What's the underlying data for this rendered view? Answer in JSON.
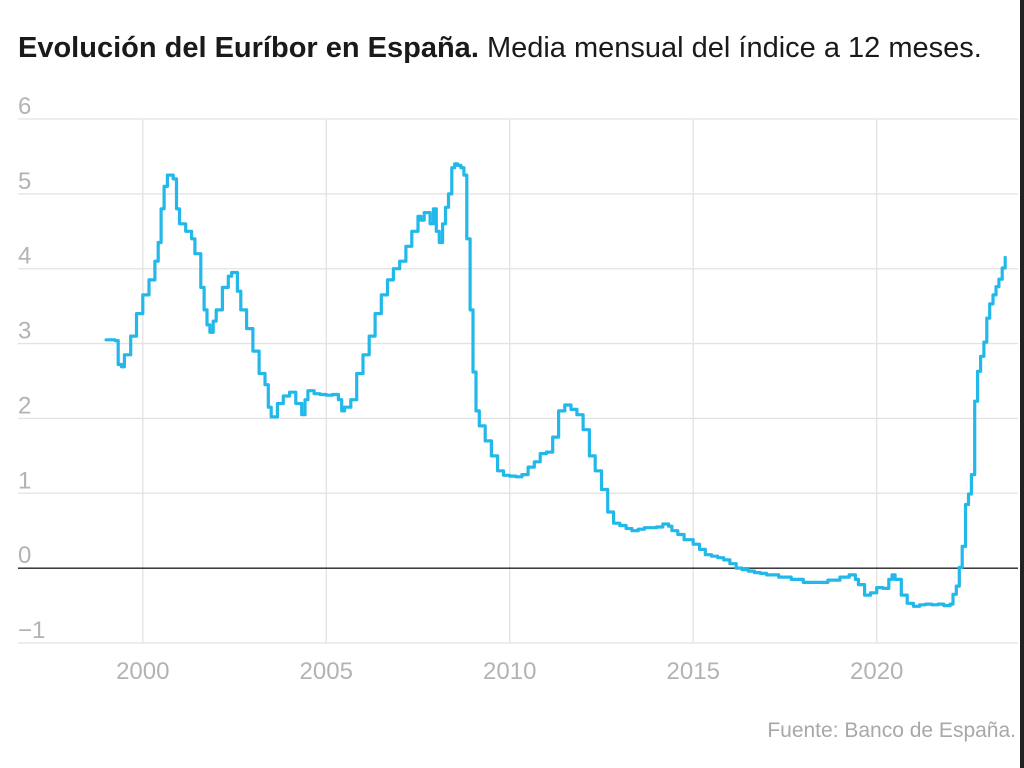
{
  "title": {
    "bold": "Evolución del Euríbor en España.",
    "regular": "Media mensual del índice a 12 meses."
  },
  "source": "Fuente: Banco de España.",
  "colors": {
    "line": "#23b8ea",
    "grid": "#e2e2e2",
    "zero_line": "#222222",
    "tick_label": "#b3b3b3",
    "title": "#1a1a1a",
    "source": "#a8a8a8"
  },
  "chart_data": {
    "type": "line",
    "title": "Evolución del Euríbor en España.",
    "subtitle": "Media mensual del índice a 12 meses.",
    "xlabel": "",
    "ylabel": "",
    "xlim": [
      1996.6,
      2023.85
    ],
    "ylim": [
      -1,
      6
    ],
    "x_ticks": [
      2000,
      2005,
      2010,
      2015,
      2020
    ],
    "y_ticks": [
      6,
      5,
      4,
      3,
      2,
      1,
      0,
      -1
    ],
    "y_tick_labels": [
      "6",
      "5",
      "4",
      "3",
      "2",
      "1",
      "0",
      "−1"
    ],
    "grid": true,
    "legend": "none",
    "series": [
      {
        "points": [
          [
            1999.0,
            3.05
          ],
          [
            1999.25,
            3.04
          ],
          [
            1999.33,
            2.72
          ],
          [
            1999.42,
            2.69
          ],
          [
            1999.5,
            2.85
          ],
          [
            1999.67,
            3.1
          ],
          [
            1999.83,
            3.4
          ],
          [
            2000.0,
            3.65
          ],
          [
            2000.17,
            3.85
          ],
          [
            2000.33,
            4.1
          ],
          [
            2000.42,
            4.35
          ],
          [
            2000.5,
            4.8
          ],
          [
            2000.58,
            5.1
          ],
          [
            2000.67,
            5.25
          ],
          [
            2000.83,
            5.2
          ],
          [
            2000.92,
            4.8
          ],
          [
            2001.0,
            4.6
          ],
          [
            2001.17,
            4.5
          ],
          [
            2001.33,
            4.4
          ],
          [
            2001.42,
            4.2
          ],
          [
            2001.58,
            3.75
          ],
          [
            2001.67,
            3.45
          ],
          [
            2001.75,
            3.25
          ],
          [
            2001.83,
            3.15
          ],
          [
            2001.92,
            3.3
          ],
          [
            2002.0,
            3.45
          ],
          [
            2002.17,
            3.75
          ],
          [
            2002.33,
            3.9
          ],
          [
            2002.42,
            3.95
          ],
          [
            2002.58,
            3.7
          ],
          [
            2002.67,
            3.45
          ],
          [
            2002.83,
            3.2
          ],
          [
            2003.0,
            2.9
          ],
          [
            2003.17,
            2.6
          ],
          [
            2003.33,
            2.45
          ],
          [
            2003.42,
            2.15
          ],
          [
            2003.5,
            2.02
          ],
          [
            2003.67,
            2.2
          ],
          [
            2003.83,
            2.3
          ],
          [
            2004.0,
            2.35
          ],
          [
            2004.17,
            2.2
          ],
          [
            2004.33,
            2.05
          ],
          [
            2004.42,
            2.25
          ],
          [
            2004.5,
            2.37
          ],
          [
            2004.67,
            2.33
          ],
          [
            2004.83,
            2.32
          ],
          [
            2005.0,
            2.31
          ],
          [
            2005.17,
            2.32
          ],
          [
            2005.33,
            2.25
          ],
          [
            2005.42,
            2.1
          ],
          [
            2005.5,
            2.15
          ],
          [
            2005.67,
            2.25
          ],
          [
            2005.83,
            2.6
          ],
          [
            2006.0,
            2.85
          ],
          [
            2006.17,
            3.1
          ],
          [
            2006.33,
            3.4
          ],
          [
            2006.5,
            3.65
          ],
          [
            2006.67,
            3.85
          ],
          [
            2006.83,
            4.0
          ],
          [
            2007.0,
            4.1
          ],
          [
            2007.17,
            4.3
          ],
          [
            2007.33,
            4.5
          ],
          [
            2007.5,
            4.7
          ],
          [
            2007.58,
            4.65
          ],
          [
            2007.67,
            4.75
          ],
          [
            2007.83,
            4.6
          ],
          [
            2007.92,
            4.8
          ],
          [
            2008.0,
            4.5
          ],
          [
            2008.08,
            4.35
          ],
          [
            2008.17,
            4.6
          ],
          [
            2008.25,
            4.82
          ],
          [
            2008.33,
            5.0
          ],
          [
            2008.42,
            5.35
          ],
          [
            2008.5,
            5.4
          ],
          [
            2008.58,
            5.38
          ],
          [
            2008.67,
            5.35
          ],
          [
            2008.75,
            5.25
          ],
          [
            2008.83,
            4.4
          ],
          [
            2008.92,
            3.45
          ],
          [
            2009.0,
            2.62
          ],
          [
            2009.08,
            2.1
          ],
          [
            2009.17,
            1.9
          ],
          [
            2009.33,
            1.7
          ],
          [
            2009.5,
            1.5
          ],
          [
            2009.67,
            1.3
          ],
          [
            2009.83,
            1.24
          ],
          [
            2010.0,
            1.23
          ],
          [
            2010.17,
            1.22
          ],
          [
            2010.33,
            1.25
          ],
          [
            2010.5,
            1.35
          ],
          [
            2010.67,
            1.42
          ],
          [
            2010.83,
            1.53
          ],
          [
            2011.0,
            1.55
          ],
          [
            2011.17,
            1.75
          ],
          [
            2011.33,
            2.1
          ],
          [
            2011.5,
            2.18
          ],
          [
            2011.67,
            2.12
          ],
          [
            2011.83,
            2.05
          ],
          [
            2012.0,
            1.85
          ],
          [
            2012.17,
            1.5
          ],
          [
            2012.33,
            1.3
          ],
          [
            2012.5,
            1.05
          ],
          [
            2012.67,
            0.75
          ],
          [
            2012.83,
            0.6
          ],
          [
            2013.0,
            0.57
          ],
          [
            2013.17,
            0.53
          ],
          [
            2013.33,
            0.5
          ],
          [
            2013.5,
            0.52
          ],
          [
            2013.67,
            0.54
          ],
          [
            2013.83,
            0.54
          ],
          [
            2014.0,
            0.55
          ],
          [
            2014.17,
            0.59
          ],
          [
            2014.33,
            0.56
          ],
          [
            2014.42,
            0.5
          ],
          [
            2014.58,
            0.45
          ],
          [
            2014.75,
            0.38
          ],
          [
            2015.0,
            0.32
          ],
          [
            2015.17,
            0.25
          ],
          [
            2015.33,
            0.18
          ],
          [
            2015.5,
            0.16
          ],
          [
            2015.67,
            0.14
          ],
          [
            2015.83,
            0.11
          ],
          [
            2016.0,
            0.06
          ],
          [
            2016.17,
            0.0
          ],
          [
            2016.33,
            -0.02
          ],
          [
            2016.5,
            -0.04
          ],
          [
            2016.67,
            -0.06
          ],
          [
            2016.83,
            -0.07
          ],
          [
            2017.0,
            -0.09
          ],
          [
            2017.33,
            -0.12
          ],
          [
            2017.67,
            -0.15
          ],
          [
            2018.0,
            -0.19
          ],
          [
            2018.33,
            -0.19
          ],
          [
            2018.67,
            -0.16
          ],
          [
            2019.0,
            -0.12
          ],
          [
            2019.25,
            -0.09
          ],
          [
            2019.42,
            -0.15
          ],
          [
            2019.5,
            -0.22
          ],
          [
            2019.67,
            -0.36
          ],
          [
            2019.83,
            -0.33
          ],
          [
            2020.0,
            -0.26
          ],
          [
            2020.17,
            -0.27
          ],
          [
            2020.33,
            -0.15
          ],
          [
            2020.42,
            -0.09
          ],
          [
            2020.5,
            -0.15
          ],
          [
            2020.67,
            -0.36
          ],
          [
            2020.83,
            -0.47
          ],
          [
            2021.0,
            -0.51
          ],
          [
            2021.17,
            -0.49
          ],
          [
            2021.33,
            -0.48
          ],
          [
            2021.5,
            -0.49
          ],
          [
            2021.67,
            -0.48
          ],
          [
            2021.83,
            -0.5
          ],
          [
            2022.0,
            -0.48
          ],
          [
            2022.08,
            -0.35
          ],
          [
            2022.17,
            -0.24
          ],
          [
            2022.25,
            0.01
          ],
          [
            2022.33,
            0.29
          ],
          [
            2022.42,
            0.85
          ],
          [
            2022.5,
            0.99
          ],
          [
            2022.58,
            1.25
          ],
          [
            2022.67,
            2.23
          ],
          [
            2022.75,
            2.63
          ],
          [
            2022.83,
            2.83
          ],
          [
            2022.92,
            3.02
          ],
          [
            2023.0,
            3.34
          ],
          [
            2023.08,
            3.53
          ],
          [
            2023.17,
            3.65
          ],
          [
            2023.25,
            3.76
          ],
          [
            2023.33,
            3.86
          ],
          [
            2023.42,
            4.01
          ],
          [
            2023.5,
            4.15
          ]
        ]
      }
    ]
  }
}
